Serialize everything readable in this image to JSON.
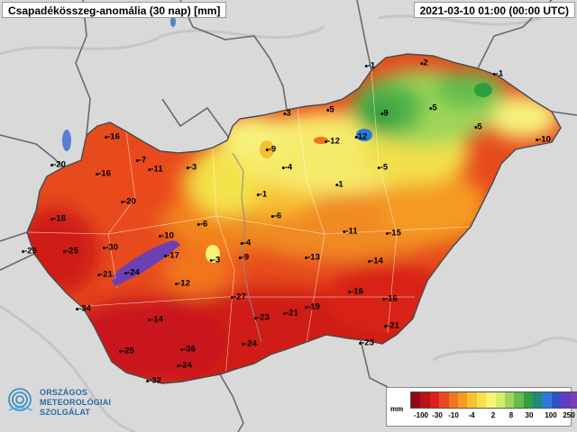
{
  "header": {
    "title": "Csapadékösszeg-anomália (30 nap) [mm]",
    "timestamp": "2021-03-10 01:00 (00:00 UTC)"
  },
  "logo": {
    "line1": "ORSZÁGOS",
    "line2": "METEOROLÓGIAI",
    "line3": "SZOLGÁLAT"
  },
  "legend": {
    "unit": "mm",
    "colors": [
      "#8e0b11",
      "#b8121a",
      "#d92119",
      "#ea4a1c",
      "#f2741f",
      "#f59a24",
      "#f7c031",
      "#f3e24a",
      "#f6f27a",
      "#d5ec6a",
      "#9fd65a",
      "#62bd4e",
      "#2f9e3e",
      "#1f8a7a",
      "#2d7ad6",
      "#2f52c8",
      "#5f3cc0",
      "#7d3fb8"
    ],
    "tick_labels": [
      "-100",
      "-30",
      "-10",
      "-4",
      "2",
      "8",
      "30",
      "100",
      "250"
    ]
  },
  "station_values": [
    {
      "v": "-1"
    },
    {
      "v": "2"
    },
    {
      "v": "-1"
    },
    {
      "v": "-16"
    },
    {
      "v": "3"
    },
    {
      "v": "5"
    },
    {
      "v": "9"
    },
    {
      "v": "5"
    },
    {
      "v": "-20"
    },
    {
      "v": "-7"
    },
    {
      "v": "-11"
    },
    {
      "v": "-3"
    },
    {
      "v": "-9"
    },
    {
      "v": "-12"
    },
    {
      "v": "12"
    },
    {
      "v": "5"
    },
    {
      "v": "-5"
    },
    {
      "v": "-16"
    },
    {
      "v": "-4"
    },
    {
      "v": "-10"
    },
    {
      "v": "1"
    },
    {
      "v": "-20"
    },
    {
      "v": "-1"
    },
    {
      "v": "-18"
    },
    {
      "v": "-6"
    },
    {
      "v": "-6"
    },
    {
      "v": "-10"
    },
    {
      "v": "-11"
    },
    {
      "v": "-15"
    },
    {
      "v": "-29"
    },
    {
      "v": "-25"
    },
    {
      "v": "-30"
    },
    {
      "v": "-4"
    },
    {
      "v": "-17"
    },
    {
      "v": "-3"
    },
    {
      "v": "-9"
    },
    {
      "v": "-13"
    },
    {
      "v": "-14"
    },
    {
      "v": "-21"
    },
    {
      "v": "-24"
    },
    {
      "v": "-12"
    },
    {
      "v": "-16"
    },
    {
      "v": "-27"
    },
    {
      "v": "-16"
    },
    {
      "v": "-34"
    },
    {
      "v": "-19"
    },
    {
      "v": "-23"
    },
    {
      "v": "-21"
    },
    {
      "v": "-14"
    },
    {
      "v": "-21"
    },
    {
      "v": "-25"
    },
    {
      "v": "-36"
    },
    {
      "v": "-24"
    },
    {
      "v": "-23"
    },
    {
      "v": "-24"
    },
    {
      "v": "-32"
    }
  ]
}
